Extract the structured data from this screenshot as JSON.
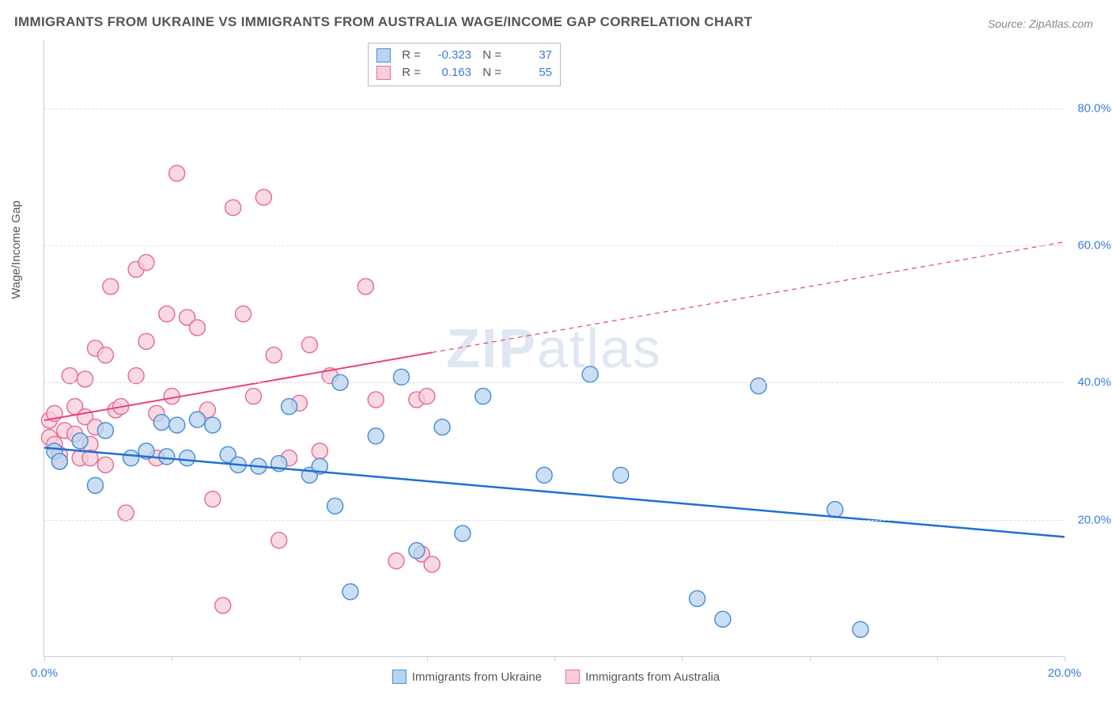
{
  "title": "IMMIGRANTS FROM UKRAINE VS IMMIGRANTS FROM AUSTRALIA WAGE/INCOME GAP CORRELATION CHART",
  "source": "Source: ZipAtlas.com",
  "y_axis_label": "Wage/Income Gap",
  "watermark_a": "ZIP",
  "watermark_b": "atlas",
  "chart": {
    "type": "scatter",
    "xlim": [
      0,
      20
    ],
    "ylim": [
      0,
      90
    ],
    "x_ticks": [
      0,
      2.5,
      5,
      7.5,
      10,
      12.5,
      15,
      17.5,
      20
    ],
    "x_tick_labels": {
      "0": "0.0%",
      "20": "20.0%"
    },
    "y_ticks": [
      20,
      40,
      60,
      80
    ],
    "y_tick_labels": [
      "20.0%",
      "40.0%",
      "60.0%",
      "80.0%"
    ],
    "grid_color": "#dddddd",
    "background_color": "#ffffff",
    "axis_color": "#cccccc",
    "tick_label_color": "#3b7dd8",
    "series": [
      {
        "name": "Immigrants from Ukraine",
        "marker_fill": "#b8d4f0",
        "marker_stroke": "#4d8fd6",
        "marker_radius": 10,
        "line_color": "#1f6fd4",
        "line_width": 2.5,
        "r_value": "-0.323",
        "n_value": "37",
        "trend": {
          "x1": 0,
          "y1": 30.5,
          "x2": 20,
          "y2": 17.5,
          "solid_until_x": 20
        },
        "points": [
          [
            0.2,
            30
          ],
          [
            0.3,
            28.5
          ],
          [
            0.7,
            31.5
          ],
          [
            1.0,
            25
          ],
          [
            1.2,
            33
          ],
          [
            1.7,
            29
          ],
          [
            2.0,
            30
          ],
          [
            2.3,
            34.2
          ],
          [
            2.4,
            29.2
          ],
          [
            2.6,
            33.8
          ],
          [
            2.8,
            29
          ],
          [
            3.0,
            34.6
          ],
          [
            3.3,
            33.8
          ],
          [
            3.6,
            29.5
          ],
          [
            3.8,
            28
          ],
          [
            4.2,
            27.8
          ],
          [
            4.6,
            28.2
          ],
          [
            4.8,
            36.5
          ],
          [
            5.2,
            26.5
          ],
          [
            5.4,
            27.8
          ],
          [
            5.7,
            22
          ],
          [
            5.8,
            40
          ],
          [
            6.0,
            9.5
          ],
          [
            6.5,
            32.2
          ],
          [
            7.0,
            40.8
          ],
          [
            7.3,
            15.5
          ],
          [
            7.8,
            33.5
          ],
          [
            8.2,
            18
          ],
          [
            8.6,
            38
          ],
          [
            9.8,
            26.5
          ],
          [
            10.7,
            41.2
          ],
          [
            11.3,
            26.5
          ],
          [
            12.8,
            8.5
          ],
          [
            13.3,
            5.5
          ],
          [
            14.0,
            39.5
          ],
          [
            15.5,
            21.5
          ],
          [
            16.0,
            4
          ]
        ]
      },
      {
        "name": "Immigrants from Australia",
        "marker_fill": "#f7cdd8",
        "marker_stroke": "#e76f98",
        "marker_radius": 10,
        "line_color": "#e8427b",
        "line_width": 2,
        "r_value": "0.163",
        "n_value": "55",
        "trend": {
          "x1": 0,
          "y1": 34.5,
          "x2": 20,
          "y2": 60.5,
          "solid_until_x": 7.6
        },
        "points": [
          [
            0.1,
            34.5
          ],
          [
            0.1,
            32
          ],
          [
            0.2,
            35.5
          ],
          [
            0.2,
            31
          ],
          [
            0.3,
            29.5
          ],
          [
            0.3,
            28.5
          ],
          [
            0.4,
            33
          ],
          [
            0.5,
            41
          ],
          [
            0.6,
            36.5
          ],
          [
            0.6,
            32.5
          ],
          [
            0.7,
            29
          ],
          [
            0.8,
            40.5
          ],
          [
            0.8,
            35
          ],
          [
            0.9,
            31
          ],
          [
            0.9,
            29
          ],
          [
            1.0,
            45
          ],
          [
            1.0,
            33.5
          ],
          [
            1.2,
            44
          ],
          [
            1.2,
            28
          ],
          [
            1.3,
            54
          ],
          [
            1.4,
            36
          ],
          [
            1.5,
            36.5
          ],
          [
            1.6,
            21
          ],
          [
            1.8,
            41
          ],
          [
            1.8,
            56.5
          ],
          [
            2.0,
            46
          ],
          [
            2.0,
            57.5
          ],
          [
            2.2,
            35.5
          ],
          [
            2.2,
            29
          ],
          [
            2.4,
            50
          ],
          [
            2.5,
            38
          ],
          [
            2.6,
            70.5
          ],
          [
            2.8,
            49.5
          ],
          [
            3.0,
            48
          ],
          [
            3.2,
            36
          ],
          [
            3.3,
            23
          ],
          [
            3.5,
            7.5
          ],
          [
            3.7,
            65.5
          ],
          [
            3.9,
            50
          ],
          [
            4.1,
            38
          ],
          [
            4.3,
            67
          ],
          [
            4.5,
            44
          ],
          [
            4.6,
            17
          ],
          [
            4.8,
            29
          ],
          [
            5.0,
            37
          ],
          [
            5.2,
            45.5
          ],
          [
            5.4,
            30
          ],
          [
            5.6,
            41
          ],
          [
            6.3,
            54
          ],
          [
            6.5,
            37.5
          ],
          [
            6.9,
            14
          ],
          [
            7.3,
            37.5
          ],
          [
            7.4,
            15
          ],
          [
            7.5,
            38
          ],
          [
            7.6,
            13.5
          ]
        ]
      }
    ]
  },
  "stats_box": {
    "r_label": "R  =",
    "n_label": "N  ="
  },
  "legend_bottom": [
    "Immigrants from Ukraine",
    "Immigrants from Australia"
  ]
}
